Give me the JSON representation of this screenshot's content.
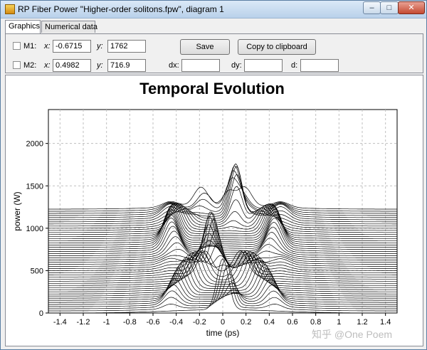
{
  "window": {
    "title": "RP Fiber Power \"Higher-order solitons.fpw\", diagram 1",
    "minimize_glyph": "–",
    "maximize_glyph": "□",
    "close_glyph": "✕"
  },
  "tabs": [
    {
      "label": "Graphics",
      "active": true
    },
    {
      "label": "Numerical data",
      "active": false
    }
  ],
  "markers": {
    "m1": {
      "label": "M1:",
      "x_label": "x:",
      "x_value": "-0.6715",
      "y_label": "y:",
      "y_value": "1762",
      "checked": false
    },
    "m2": {
      "label": "M2:",
      "x_label": "x:",
      "x_value": "0.4982",
      "y_label": "y:",
      "y_value": "716.9",
      "checked": false
    }
  },
  "buttons": {
    "save": "Save",
    "copy": "Copy to clipboard"
  },
  "deltas": {
    "dx_label": "dx:",
    "dx_value": "",
    "dy_label": "dy:",
    "dy_value": "",
    "d_label": "d:",
    "d_value": ""
  },
  "watermark": "知乎 @One Poem",
  "chart_data": {
    "type": "line",
    "title": "Temporal Evolution",
    "xlabel": "time (ps)",
    "ylabel": "power (W)",
    "xlim": [
      -1.5,
      1.5
    ],
    "ylim": [
      0,
      2400
    ],
    "xticks": [
      -1.4,
      -1.2,
      -1,
      -0.8,
      -0.6,
      -0.4,
      -0.2,
      0,
      0.2,
      0.4,
      0.6,
      0.8,
      1,
      1.2,
      1.4
    ],
    "yticks": [
      0,
      500,
      1000,
      1500,
      2000
    ],
    "grid": true,
    "num_traces": 50,
    "trace_offset_step": 25,
    "colors": {
      "trace": "#000000",
      "grid": "#bfbfbf"
    }
  }
}
